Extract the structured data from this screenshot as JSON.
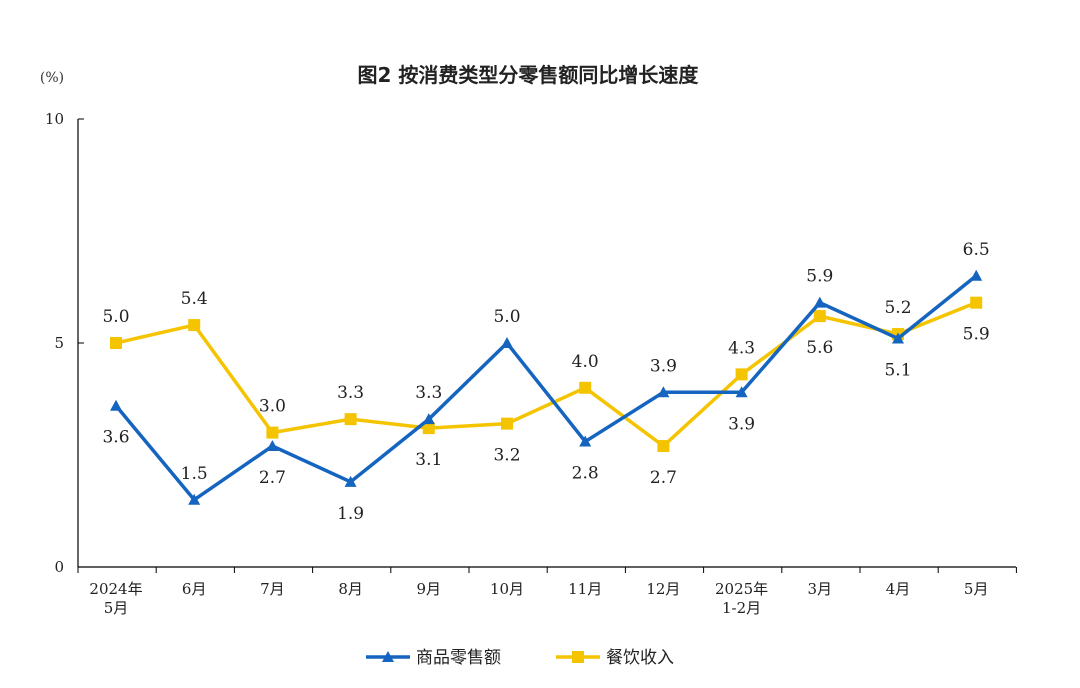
{
  "chart_data": {
    "type": "line",
    "title": "图2 按消费类型分零售额同比增长速度",
    "unit_label": "(%)",
    "categories": [
      [
        "2024年",
        "5月"
      ],
      [
        "6月"
      ],
      [
        "7月"
      ],
      [
        "8月"
      ],
      [
        "9月"
      ],
      [
        "10月"
      ],
      [
        "11月"
      ],
      [
        "12月"
      ],
      [
        "2025年",
        "1-2月"
      ],
      [
        "3月"
      ],
      [
        "4月"
      ],
      [
        "5月"
      ]
    ],
    "ylim": [
      0,
      10
    ],
    "yticks": [
      "0",
      "5",
      "10"
    ],
    "grid": false,
    "legend_position": "bottom",
    "series": [
      {
        "name": "商品零售额",
        "color": "#1565C0",
        "marker": "triangle",
        "values": [
          3.6,
          1.5,
          2.7,
          1.9,
          3.3,
          5.0,
          2.8,
          3.9,
          3.9,
          5.9,
          5.1,
          6.5
        ],
        "labels": [
          "3.6",
          "1.5",
          "2.7",
          "1.9",
          "3.3",
          "5.0",
          "2.8",
          "3.9",
          "3.9",
          "5.9",
          "5.1",
          "6.5"
        ],
        "label_positions": [
          "below",
          "above",
          "below",
          "below",
          "above",
          "above",
          "below",
          "above",
          "below",
          "above",
          "below",
          "above"
        ]
      },
      {
        "name": "餐饮收入",
        "color": "#F5C400",
        "marker": "square",
        "values": [
          5.0,
          5.4,
          3.0,
          3.3,
          3.1,
          3.2,
          4.0,
          2.7,
          4.3,
          5.6,
          5.2,
          5.9
        ],
        "labels": [
          "5.0",
          "5.4",
          "3.0",
          "3.3",
          "3.1",
          "3.2",
          "4.0",
          "2.7",
          "4.3",
          "5.6",
          "5.2",
          "5.9"
        ],
        "label_positions": [
          "above",
          "above",
          "above",
          "above",
          "below",
          "below",
          "above",
          "below",
          "above",
          "below",
          "above",
          "below"
        ]
      }
    ]
  }
}
